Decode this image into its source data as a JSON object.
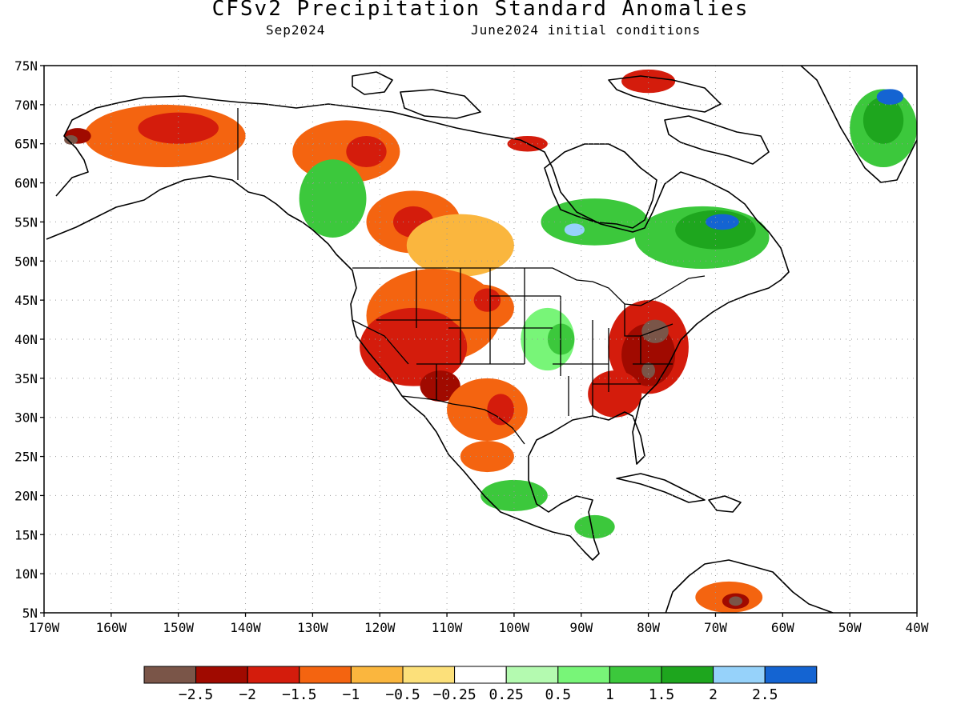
{
  "header": {
    "title": "CFSv2 Precipitation Standard Anomalies",
    "valid_month": "Sep2024",
    "init_conditions": "June2024 initial conditions"
  },
  "axes": {
    "latitude_labels": [
      "75N",
      "70N",
      "65N",
      "60N",
      "55N",
      "50N",
      "45N",
      "40N",
      "35N",
      "30N",
      "25N",
      "20N",
      "15N",
      "10N",
      "5N"
    ],
    "longitude_labels": [
      "170W",
      "160W",
      "150W",
      "140W",
      "130W",
      "120W",
      "110W",
      "100W",
      "90W",
      "80W",
      "70W",
      "60W",
      "50W",
      "40W"
    ],
    "lat_range": [
      5,
      75
    ],
    "lon_range": [
      -170,
      -40
    ],
    "gridlines": "dotted"
  },
  "colorbar": {
    "bins": [
      {
        "color": "#7a5548"
      },
      {
        "color": "#a00a00"
      },
      {
        "color": "#d41c0c"
      },
      {
        "color": "#f46410"
      },
      {
        "color": "#fab63e"
      },
      {
        "color": "#fce07a"
      },
      {
        "color": "#ffffff"
      },
      {
        "color": "#b4fab0"
      },
      {
        "color": "#78f578"
      },
      {
        "color": "#3cc83c"
      },
      {
        "color": "#1ea61e"
      },
      {
        "color": "#96d2fa"
      },
      {
        "color": "#1464d2"
      }
    ],
    "labels": [
      "-2.5",
      "-2",
      "-1.5",
      "-1",
      "-0.5",
      "-0.25",
      "0.25",
      "0.5",
      "1",
      "1.5",
      "2",
      "2.5"
    ]
  },
  "anomaly_regions": [
    {
      "level": "-1",
      "lon": -152,
      "lat": 66,
      "rlon": 12,
      "rlat": 4
    },
    {
      "level": "-1.5",
      "lon": -150,
      "lat": 67,
      "rlon": 6,
      "rlat": 2
    },
    {
      "level": "-2",
      "lon": -165,
      "lat": 66,
      "rlon": 2,
      "rlat": 1
    },
    {
      "level": "-2.5",
      "lon": -166,
      "lat": 65.5,
      "rlon": 1,
      "rlat": 0.6
    },
    {
      "level": "-1",
      "lon": -125,
      "lat": 64,
      "rlon": 8,
      "rlat": 4
    },
    {
      "level": "-1.5",
      "lon": -122,
      "lat": 64,
      "rlon": 3,
      "rlat": 2
    },
    {
      "level": "-1",
      "lon": -115,
      "lat": 55,
      "rlon": 7,
      "rlat": 4
    },
    {
      "level": "-1.5",
      "lon": -115,
      "lat": 55,
      "rlon": 3,
      "rlat": 2
    },
    {
      "level": "-0.5",
      "lon": -108,
      "lat": 52,
      "rlon": 8,
      "rlat": 4
    },
    {
      "level": "-1",
      "lon": -112,
      "lat": 43,
      "rlon": 10,
      "rlat": 6
    },
    {
      "level": "-1.5",
      "lon": -115,
      "lat": 39,
      "rlon": 8,
      "rlat": 5
    },
    {
      "level": "-2",
      "lon": -111,
      "lat": 34,
      "rlon": 3,
      "rlat": 2
    },
    {
      "level": "-1",
      "lon": -104,
      "lat": 31,
      "rlon": 6,
      "rlat": 4
    },
    {
      "level": "-1.5",
      "lon": -102,
      "lat": 31,
      "rlon": 2,
      "rlat": 2
    },
    {
      "level": "-1",
      "lon": -104,
      "lat": 25,
      "rlon": 4,
      "rlat": 2
    },
    {
      "level": "-1",
      "lon": -105,
      "lat": 44,
      "rlon": 5,
      "rlat": 3
    },
    {
      "level": "-1.5",
      "lon": -104,
      "lat": 45,
      "rlon": 2,
      "rlat": 1.5
    },
    {
      "level": "-1.5",
      "lon": -80,
      "lat": 39,
      "rlon": 6,
      "rlat": 6
    },
    {
      "level": "-2",
      "lon": -80,
      "lat": 38,
      "rlon": 4,
      "rlat": 4
    },
    {
      "level": "-2.5",
      "lon": -79,
      "lat": 41,
      "rlon": 2,
      "rlat": 1.5
    },
    {
      "level": "-2.5",
      "lon": -80,
      "lat": 36,
      "rlon": 1,
      "rlat": 1
    },
    {
      "level": "-1.5",
      "lon": -85,
      "lat": 33,
      "rlon": 4,
      "rlat": 3
    },
    {
      "level": "-1.5",
      "lon": -80,
      "lat": 73,
      "rlon": 4,
      "rlat": 1.5
    },
    {
      "level": "-1.5",
      "lon": -98,
      "lat": 65,
      "rlon": 3,
      "rlat": 1
    },
    {
      "level": "-1",
      "lon": -68,
      "lat": 7,
      "rlon": 5,
      "rlat": 2
    },
    {
      "level": "-2",
      "lon": -67,
      "lat": 6.5,
      "rlon": 2,
      "rlat": 1
    },
    {
      "level": "-2.5",
      "lon": -67,
      "lat": 6.5,
      "rlon": 1,
      "rlat": 0.6
    },
    {
      "level": "0.5",
      "lon": -95,
      "lat": 40,
      "rlon": 4,
      "rlat": 4
    },
    {
      "level": "1",
      "lon": -93,
      "lat": 40,
      "rlon": 2,
      "rlat": 2
    },
    {
      "level": "1",
      "lon": -88,
      "lat": 55,
      "rlon": 8,
      "rlat": 3
    },
    {
      "level": "2",
      "lon": -91,
      "lat": 54,
      "rlon": 1.5,
      "rlat": 0.8
    },
    {
      "level": "1",
      "lon": -72,
      "lat": 53,
      "rlon": 10,
      "rlat": 4
    },
    {
      "level": "1.5",
      "lon": -70,
      "lat": 54,
      "rlon": 6,
      "rlat": 2.5
    },
    {
      "level": "2.5",
      "lon": -69,
      "lat": 55,
      "rlon": 2.5,
      "rlat": 1
    },
    {
      "level": "1",
      "lon": -127,
      "lat": 58,
      "rlon": 5,
      "rlat": 5
    },
    {
      "level": "1",
      "lon": -100,
      "lat": 20,
      "rlon": 5,
      "rlat": 2
    },
    {
      "level": "1",
      "lon": -88,
      "lat": 16,
      "rlon": 3,
      "rlat": 1.5
    },
    {
      "level": "1",
      "lon": -45,
      "lat": 67,
      "rlon": 5,
      "rlat": 5
    },
    {
      "level": "1.5",
      "lon": -45,
      "lat": 68,
      "rlon": 3,
      "rlat": 3
    },
    {
      "level": "2.5",
      "lon": -44,
      "lat": 71,
      "rlon": 2,
      "rlat": 1
    }
  ]
}
